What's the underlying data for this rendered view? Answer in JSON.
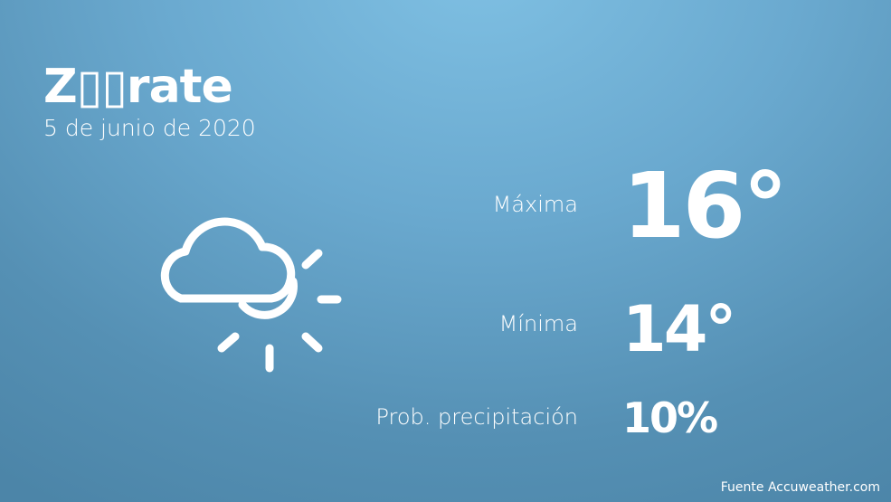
{
  "location": "Z▯▯rate",
  "date": "5 de junio de 2020",
  "weather_icon": "cloud-sun-icon",
  "max": {
    "label": "Máxima",
    "value": "16°"
  },
  "min": {
    "label": "Mínima",
    "value": "14°"
  },
  "precip": {
    "label": "Prob. precipitación",
    "value": "10%"
  },
  "source": "Fuente Accuweather.com"
}
